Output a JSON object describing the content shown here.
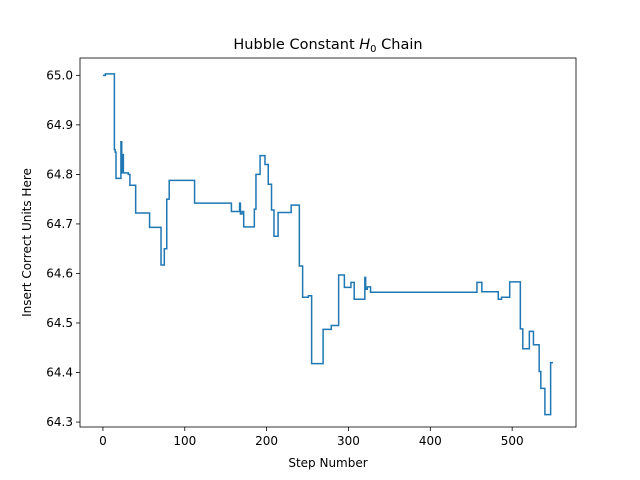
{
  "chart_data": {
    "type": "line",
    "title": "Hubble Constant H0 Chain",
    "title_parts": {
      "prefix": "Hubble Constant ",
      "symbol": "H",
      "subscript": "0",
      "suffix": " Chain"
    },
    "xlabel": "Step Number",
    "ylabel": "Insert Correct Units Here",
    "xlim": [
      -28,
      578
    ],
    "ylim": [
      64.29,
      65.035
    ],
    "xticks": [
      0,
      100,
      200,
      300,
      400,
      500
    ],
    "xtick_labels": [
      "0",
      "100",
      "200",
      "300",
      "400",
      "500"
    ],
    "yticks": [
      64.3,
      64.4,
      64.5,
      64.6,
      64.7,
      64.8,
      64.9,
      65.0
    ],
    "ytick_labels": [
      "64.3",
      "64.4",
      "64.5",
      "64.6",
      "64.7",
      "64.8",
      "64.9",
      "65.0"
    ],
    "grid": false,
    "line_color": "#1f77b4",
    "series": [
      {
        "steps": [
          [
            0,
            65.0
          ],
          [
            3,
            65.003
          ],
          [
            11,
            65.003
          ],
          [
            14,
            64.85
          ],
          [
            15,
            64.845
          ],
          [
            16,
            64.792
          ],
          [
            22,
            64.866
          ],
          [
            23,
            64.803
          ],
          [
            24,
            64.84
          ],
          [
            25,
            64.803
          ],
          [
            31,
            64.8
          ],
          [
            33,
            64.778
          ],
          [
            40,
            64.722
          ],
          [
            57,
            64.693
          ],
          [
            71,
            64.617
          ],
          [
            75,
            64.65
          ],
          [
            78,
            64.75
          ],
          [
            81,
            64.788
          ],
          [
            112,
            64.742
          ],
          [
            157,
            64.725
          ],
          [
            167,
            64.742
          ],
          [
            168,
            64.72
          ],
          [
            170,
            64.725
          ],
          [
            172,
            64.694
          ],
          [
            185,
            64.73
          ],
          [
            187,
            64.8
          ],
          [
            192,
            64.838
          ],
          [
            198,
            64.82
          ],
          [
            202,
            64.78
          ],
          [
            206,
            64.728
          ],
          [
            209,
            64.675
          ],
          [
            214,
            64.723
          ],
          [
            230,
            64.738
          ],
          [
            240,
            64.615
          ],
          [
            244,
            64.552
          ],
          [
            251,
            64.555
          ],
          [
            255,
            64.418
          ],
          [
            269,
            64.487
          ],
          [
            279,
            64.495
          ],
          [
            288,
            64.597
          ],
          [
            295,
            64.572
          ],
          [
            303,
            64.582
          ],
          [
            307,
            64.548
          ],
          [
            320,
            64.592
          ],
          [
            321,
            64.568
          ],
          [
            323,
            64.573
          ],
          [
            327,
            64.562
          ],
          [
            457,
            64.582
          ],
          [
            463,
            64.563
          ],
          [
            483,
            64.548
          ],
          [
            487,
            64.552
          ],
          [
            497,
            64.583
          ],
          [
            510,
            64.488
          ],
          [
            513,
            64.448
          ],
          [
            521,
            64.483
          ],
          [
            526,
            64.456
          ],
          [
            533,
            64.402
          ],
          [
            535,
            64.368
          ],
          [
            540,
            64.315
          ],
          [
            547,
            64.42
          ],
          [
            550,
            64.42
          ]
        ]
      }
    ]
  }
}
